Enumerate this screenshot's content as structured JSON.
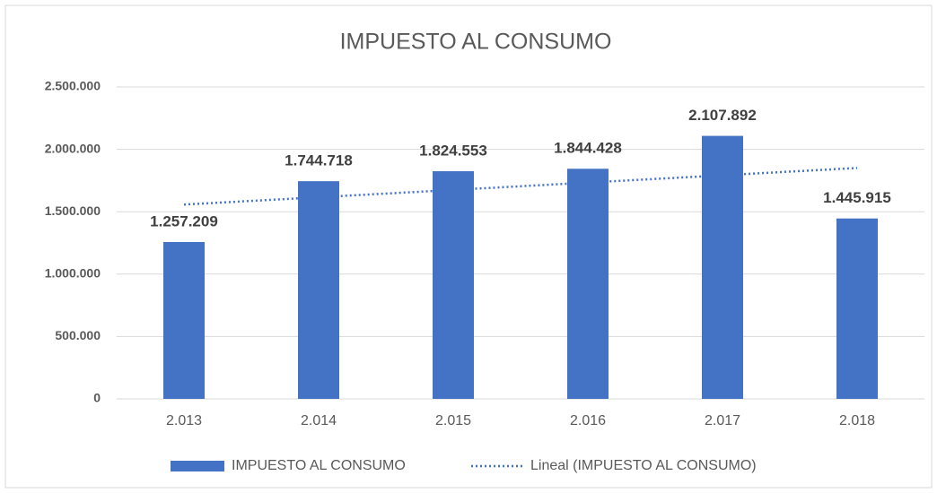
{
  "chart_data": {
    "type": "bar",
    "title": "IMPUESTO AL CONSUMO",
    "categories": [
      "2.013",
      "2.014",
      "2.015",
      "2.016",
      "2.017",
      "2.018"
    ],
    "series": [
      {
        "name": "IMPUESTO AL CONSUMO",
        "color": "#4472c4",
        "values": [
          1257209,
          1744718,
          1824553,
          1844428,
          2107892,
          1445915
        ],
        "value_labels": [
          "1.257.209",
          "1.744.718",
          "1.824.553",
          "1.844.428",
          "2.107.892",
          "1.445.915"
        ]
      }
    ],
    "trendline": {
      "type": "linear",
      "name": "Lineal (IMPUESTO AL CONSUMO)",
      "color": "#4472c4"
    },
    "ylim": [
      0,
      2500000
    ],
    "yticks": [
      0,
      {
        "value": 500000,
        "label": "500.000"
      },
      {
        "value": 1000000,
        "label": "1.000.000"
      },
      {
        "value": 1500000,
        "label": "1.500.000"
      },
      {
        "value": 2000000,
        "label": "2.000.000"
      },
      {
        "value": 2500000,
        "label": "2.500.000"
      }
    ],
    "grid": true,
    "legend": "bottom"
  }
}
